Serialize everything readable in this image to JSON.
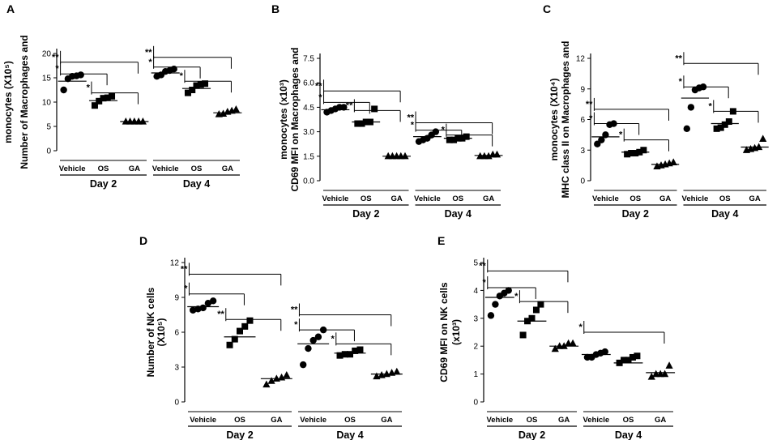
{
  "figure": {
    "panels": [
      "A",
      "B",
      "C",
      "D",
      "E"
    ]
  },
  "chart_data": [
    {
      "panel": "A",
      "type": "scatter",
      "ylabel_lines": [
        "Number of Macrophages and",
        "monocytes (X10⁵)"
      ],
      "ylim": [
        0,
        20
      ],
      "yticks": [
        "0",
        "5",
        "10",
        "15",
        "20"
      ],
      "groups": [
        "Vehicle",
        "OS",
        "GA",
        "Vehicle",
        "OS",
        "GA"
      ],
      "days": [
        "Day 2",
        "Day 4"
      ],
      "series": [
        {
          "name": "Day 2 Vehicle",
          "marker": "circle",
          "values": [
            12.5,
            14.8,
            15.3,
            15.4,
            15.6
          ],
          "mean": 14.3
        },
        {
          "name": "Day 2 OS",
          "marker": "square",
          "values": [
            9.3,
            10.2,
            10.8,
            10.9,
            11.2
          ],
          "mean": 10.3
        },
        {
          "name": "Day 2 GA",
          "marker": "triangle",
          "values": [
            6.0,
            6.0,
            6.0,
            6.0,
            6.0
          ],
          "mean": 6.0
        },
        {
          "name": "Day 4 Vehicle",
          "marker": "circle",
          "values": [
            15.3,
            15.6,
            16.3,
            16.5,
            16.8
          ],
          "mean": 16.0
        },
        {
          "name": "Day 4 OS",
          "marker": "square",
          "values": [
            11.9,
            12.5,
            13.4,
            13.6,
            13.8
          ],
          "mean": 12.8
        },
        {
          "name": "Day 4 GA",
          "marker": "triangle",
          "values": [
            7.5,
            7.6,
            8.0,
            8.2,
            8.5
          ],
          "mean": 7.8
        }
      ],
      "significance": [
        {
          "from": 0,
          "to": 2,
          "label": "**",
          "y": 18.2
        },
        {
          "from": 0,
          "to": 1,
          "label": "*",
          "y": 15.8
        },
        {
          "from": 1,
          "to": 2,
          "label": "*",
          "y": 11.9
        },
        {
          "from": 3,
          "to": 5,
          "label": "**",
          "y": 19.2
        },
        {
          "from": 3,
          "to": 4,
          "label": "*",
          "y": 17.2
        },
        {
          "from": 4,
          "to": 5,
          "label": "*",
          "y": 14.3
        }
      ]
    },
    {
      "panel": "B",
      "type": "scatter",
      "ylabel_lines": [
        "CD69 MFI on Macrophages and",
        "monocytes (x10³)"
      ],
      "ylim": [
        0,
        7.5
      ],
      "yticks": [
        "0.0",
        "1.5",
        "3.0",
        "4.5",
        "6.0",
        "7.5"
      ],
      "groups": [
        "Vehicle",
        "OS",
        "GA",
        "Vehicle",
        "OS",
        "GA"
      ],
      "days": [
        "Day 2",
        "Day 4"
      ],
      "series": [
        {
          "name": "Day 2 Vehicle",
          "marker": "circle",
          "values": [
            4.2,
            4.3,
            4.4,
            4.5,
            4.5
          ],
          "mean": 4.35
        },
        {
          "name": "Day 2 OS",
          "marker": "square",
          "values": [
            3.5,
            3.5,
            3.6,
            3.6,
            4.4
          ],
          "mean": 3.6
        },
        {
          "name": "Day 2 GA",
          "marker": "triangle",
          "values": [
            1.5,
            1.5,
            1.5,
            1.5,
            1.5
          ],
          "mean": 1.5
        },
        {
          "name": "Day 4 Vehicle",
          "marker": "circle",
          "values": [
            2.4,
            2.5,
            2.6,
            2.8,
            3.0
          ],
          "mean": 2.7
        },
        {
          "name": "Day 4 OS",
          "marker": "square",
          "values": [
            2.5,
            2.5,
            2.6,
            2.6,
            2.7
          ],
          "mean": 2.6
        },
        {
          "name": "Day 4 GA",
          "marker": "triangle",
          "values": [
            1.5,
            1.5,
            1.5,
            1.6,
            1.6
          ],
          "mean": 1.55
        }
      ],
      "significance": [
        {
          "from": 0,
          "to": 2,
          "label": "**",
          "y": 5.5
        },
        {
          "from": 0,
          "to": 1,
          "label": "*",
          "y": 4.8
        },
        {
          "from": 1,
          "to": 2,
          "label": "**",
          "y": 4.3
        },
        {
          "from": 3,
          "to": 5,
          "label": "**",
          "y": 3.55
        },
        {
          "from": 3,
          "to": 4,
          "label": "*",
          "y": 3.1
        },
        {
          "from": 4,
          "to": 5,
          "label": "*",
          "y": 2.8
        }
      ]
    },
    {
      "panel": "C",
      "type": "scatter",
      "ylabel_lines": [
        "MHC class II on Macrophages and",
        "monocytes (X10⁴)"
      ],
      "ylim": [
        0,
        12
      ],
      "yticks": [
        "0",
        "3",
        "6",
        "9",
        "12"
      ],
      "groups": [
        "Vehicle",
        "OS",
        "GA",
        "Vehicle",
        "OS",
        "GA"
      ],
      "days": [
        "Day 2",
        "Day 4"
      ],
      "series": [
        {
          "name": "Day 2 Vehicle",
          "marker": "circle",
          "values": [
            3.6,
            4.0,
            4.5,
            5.5,
            5.6
          ],
          "mean": 4.3
        },
        {
          "name": "Day 2 OS",
          "marker": "square",
          "values": [
            2.6,
            2.7,
            2.7,
            2.8,
            3.0
          ],
          "mean": 2.8
        },
        {
          "name": "Day 2 GA",
          "marker": "triangle",
          "values": [
            1.4,
            1.5,
            1.6,
            1.7,
            1.8
          ],
          "mean": 1.6
        },
        {
          "name": "Day 4 Vehicle",
          "marker": "circle",
          "values": [
            5.1,
            7.2,
            8.9,
            9.1,
            9.2
          ],
          "mean": 8.1
        },
        {
          "name": "Day 4 OS",
          "marker": "square",
          "values": [
            5.1,
            5.2,
            5.5,
            5.8,
            6.8
          ],
          "mean": 5.6
        },
        {
          "name": "Day 4 GA",
          "marker": "triangle",
          "values": [
            3.0,
            3.1,
            3.2,
            3.3,
            4.1
          ],
          "mean": 3.3
        }
      ],
      "significance": [
        {
          "from": 0,
          "to": 2,
          "label": "**",
          "y": 7.0
        },
        {
          "from": 0,
          "to": 1,
          "label": "*",
          "y": 5.6
        },
        {
          "from": 1,
          "to": 2,
          "label": "*",
          "y": 4.0
        },
        {
          "from": 3,
          "to": 5,
          "label": "**",
          "y": 11.5
        },
        {
          "from": 3,
          "to": 4,
          "label": "*",
          "y": 9.2
        },
        {
          "from": 4,
          "to": 5,
          "label": "*",
          "y": 6.8
        }
      ]
    },
    {
      "panel": "D",
      "type": "scatter",
      "ylabel_lines": [
        "Number of NK cells",
        "(X10⁵)"
      ],
      "ylim": [
        0,
        12
      ],
      "yticks": [
        "0",
        "3",
        "6",
        "9",
        "12"
      ],
      "groups": [
        "Vehicle",
        "OS",
        "GA",
        "Vehicle",
        "OS",
        "GA"
      ],
      "days": [
        "Day 2",
        "Day 4"
      ],
      "series": [
        {
          "name": "Day 2 Vehicle",
          "marker": "circle",
          "values": [
            7.9,
            8.0,
            8.1,
            8.5,
            8.7
          ],
          "mean": 8.2
        },
        {
          "name": "Day 2 OS",
          "marker": "square",
          "values": [
            4.9,
            5.4,
            6.1,
            6.5,
            7.0
          ],
          "mean": 5.6
        },
        {
          "name": "Day 2 GA",
          "marker": "triangle",
          "values": [
            1.5,
            1.8,
            2.0,
            2.1,
            2.3
          ],
          "mean": 2.0
        },
        {
          "name": "Day 4 Vehicle",
          "marker": "circle",
          "values": [
            3.2,
            4.6,
            5.3,
            5.6,
            6.2
          ],
          "mean": 5.0
        },
        {
          "name": "Day 4 OS",
          "marker": "square",
          "values": [
            4.0,
            4.1,
            4.1,
            4.4,
            4.5
          ],
          "mean": 4.2
        },
        {
          "name": "Day 4 GA",
          "marker": "triangle",
          "values": [
            2.2,
            2.3,
            2.4,
            2.5,
            2.6
          ],
          "mean": 2.4
        }
      ],
      "significance": [
        {
          "from": 0,
          "to": 2,
          "label": "**",
          "y": 11.0
        },
        {
          "from": 0,
          "to": 1,
          "label": "*",
          "y": 9.3
        },
        {
          "from": 1,
          "to": 2,
          "label": "**",
          "y": 7.1
        },
        {
          "from": 3,
          "to": 5,
          "label": "**",
          "y": 7.5
        },
        {
          "from": 3,
          "to": 4,
          "label": "*",
          "y": 6.2
        },
        {
          "from": 4,
          "to": 5,
          "label": "*",
          "y": 5.0
        }
      ]
    },
    {
      "panel": "E",
      "type": "scatter",
      "ylabel_lines": [
        "CD69 MFI on NK cells",
        "(x10³)"
      ],
      "ylim": [
        0,
        5
      ],
      "yticks": [
        "0",
        "1",
        "2",
        "3",
        "4",
        "5"
      ],
      "groups": [
        "Vehicle",
        "OS",
        "GA",
        "Vehicle",
        "OS",
        "GA"
      ],
      "days": [
        "Day 2",
        "Day 4"
      ],
      "series": [
        {
          "name": "Day 2 Vehicle",
          "marker": "circle",
          "values": [
            3.1,
            3.5,
            3.8,
            3.9,
            4.0
          ],
          "mean": 3.75
        },
        {
          "name": "Day 2 OS",
          "marker": "square",
          "values": [
            2.4,
            2.9,
            3.0,
            3.3,
            3.5
          ],
          "mean": 2.9
        },
        {
          "name": "Day 2 GA",
          "marker": "triangle",
          "values": [
            1.9,
            2.0,
            2.0,
            2.1,
            2.1
          ],
          "mean": 2.0
        },
        {
          "name": "Day 4 Vehicle",
          "marker": "circle",
          "values": [
            1.6,
            1.6,
            1.7,
            1.75,
            1.8
          ],
          "mean": 1.7
        },
        {
          "name": "Day 4 OS",
          "marker": "square",
          "values": [
            1.4,
            1.5,
            1.5,
            1.6,
            1.65
          ],
          "mean": 1.4
        },
        {
          "name": "Day 4 GA",
          "marker": "triangle",
          "values": [
            0.9,
            1.0,
            1.0,
            1.0,
            1.3
          ],
          "mean": 1.05
        }
      ],
      "significance": [
        {
          "from": 0,
          "to": 2,
          "label": "**",
          "y": 4.7
        },
        {
          "from": 0,
          "to": 1,
          "label": "*",
          "y": 4.1
        },
        {
          "from": 1,
          "to": 2,
          "label": "*",
          "y": 3.6
        },
        {
          "from": 3,
          "to": 5,
          "label": "*",
          "y": 2.5
        }
      ]
    }
  ]
}
